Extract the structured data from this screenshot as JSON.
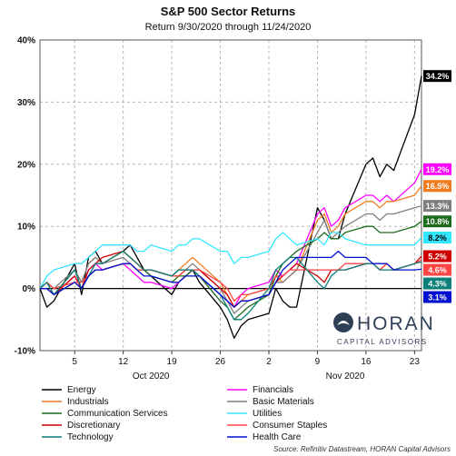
{
  "chart_data": {
    "type": "line",
    "title": "S&P 500 Sector Returns",
    "subtitle": "Return 9/30/2020 through 11/24/2020",
    "source": "Source: Refinitiv Datastream, HORAN Capital Advisors",
    "y_axis": {
      "min": -10,
      "max": 40,
      "ticks": [
        -10,
        0,
        10,
        20,
        30,
        40
      ],
      "tick_labels": [
        "-10%",
        "0%",
        "10%",
        "20%",
        "30%",
        "40%"
      ]
    },
    "x_axis": {
      "start": "2020-09-30",
      "end": "2020-11-24",
      "day_ticks": [
        {
          "date": "2020-10-05",
          "label": "5"
        },
        {
          "date": "2020-10-12",
          "label": "12"
        },
        {
          "date": "2020-10-19",
          "label": "19"
        },
        {
          "date": "2020-10-26",
          "label": "26"
        },
        {
          "date": "2020-11-02",
          "label": "2"
        },
        {
          "date": "2020-11-09",
          "label": "9"
        },
        {
          "date": "2020-11-16",
          "label": "16"
        },
        {
          "date": "2020-11-23",
          "label": "23"
        }
      ],
      "month_labels": [
        {
          "label": "Oct 2020",
          "date": "2020-10-16"
        },
        {
          "label": "Nov 2020",
          "date": "2020-11-13"
        }
      ]
    },
    "grid": true,
    "legend_position": "bottom",
    "dates": [
      "2020-09-30",
      "2020-10-01",
      "2020-10-02",
      "2020-10-05",
      "2020-10-06",
      "2020-10-07",
      "2020-10-08",
      "2020-10-09",
      "2020-10-12",
      "2020-10-13",
      "2020-10-14",
      "2020-10-15",
      "2020-10-16",
      "2020-10-19",
      "2020-10-20",
      "2020-10-21",
      "2020-10-22",
      "2020-10-23",
      "2020-10-26",
      "2020-10-27",
      "2020-10-28",
      "2020-10-29",
      "2020-10-30",
      "2020-11-02",
      "2020-11-03",
      "2020-11-04",
      "2020-11-05",
      "2020-11-06",
      "2020-11-09",
      "2020-11-10",
      "2020-11-11",
      "2020-11-12",
      "2020-11-13",
      "2020-11-16",
      "2020-11-17",
      "2020-11-18",
      "2020-11-19",
      "2020-11-20",
      "2020-11-23",
      "2020-11-24"
    ],
    "series": [
      {
        "name": "Energy",
        "color": "#000000",
        "end_label": "34.2%",
        "values": [
          0,
          -3,
          -2,
          4,
          -1,
          5,
          6,
          4,
          6,
          7,
          5,
          3,
          2,
          -1,
          1,
          2,
          3,
          1,
          -3,
          -5,
          -8,
          -6,
          -5,
          -4,
          0,
          -2,
          -3,
          -3,
          13,
          11,
          8,
          8,
          12,
          20,
          21,
          18,
          20,
          19,
          28,
          34.2
        ]
      },
      {
        "name": "Financials",
        "color": "#ff00ff",
        "end_label": "19.2%",
        "values": [
          0,
          1,
          -1,
          2,
          0,
          3,
          4,
          3,
          4,
          3,
          2,
          1,
          1,
          0,
          1,
          2,
          3,
          2,
          -1,
          -2,
          -3,
          -1,
          0,
          1,
          3,
          2,
          3,
          4,
          12,
          13,
          10,
          11,
          13,
          15,
          15,
          14,
          15,
          14,
          17,
          19.2
        ]
      },
      {
        "name": "Industrials",
        "color": "#f07b20",
        "end_label": "16.5%",
        "values": [
          0,
          1,
          -1,
          3,
          1,
          4,
          5,
          4,
          6,
          5,
          4,
          3,
          3,
          2,
          3,
          4,
          5,
          4,
          1,
          -1,
          -3,
          -2,
          -1,
          0,
          2,
          1,
          2,
          3,
          11,
          12,
          9,
          10,
          12,
          14,
          14,
          13,
          14,
          14,
          15,
          16.5
        ]
      },
      {
        "name": "Basic Materials",
        "color": "#7f7f7f",
        "end_label": "13.3%",
        "values": [
          0,
          1,
          0,
          3,
          1,
          4,
          5,
          4,
          5,
          4,
          3,
          3,
          3,
          2,
          3,
          3,
          4,
          3,
          0,
          -2,
          -4,
          -3,
          -2,
          -1,
          1,
          1,
          2,
          3,
          9,
          11,
          8,
          9,
          10,
          12,
          12,
          11,
          12,
          12,
          13,
          13.3
        ]
      },
      {
        "name": "Communication Services",
        "color": "#1d6b1d",
        "end_label": "10.8%",
        "values": [
          0,
          1,
          -1,
          1,
          0,
          2,
          3,
          3,
          4,
          4,
          3,
          3,
          2,
          1,
          2,
          2,
          3,
          2,
          -2,
          -3,
          -5,
          -4,
          -3,
          -1,
          2,
          4,
          5,
          6,
          8,
          9,
          8,
          8,
          9,
          10,
          10,
          9,
          9,
          9,
          10,
          10.8
        ]
      },
      {
        "name": "Utilities",
        "color": "#33e6ff",
        "end_label": "8.2%",
        "values": [
          0,
          2,
          3,
          4,
          4,
          5,
          6,
          7,
          7,
          7,
          6,
          6,
          7,
          6,
          7,
          7,
          8,
          8,
          6,
          6,
          4,
          5,
          5,
          6,
          8,
          9,
          8,
          7,
          8,
          7,
          9,
          9,
          8,
          7,
          7,
          7,
          7,
          7,
          7,
          8.2
        ]
      },
      {
        "name": "Discretionary",
        "color": "#d00000",
        "end_label": "5.2%",
        "values": [
          0,
          0,
          -1,
          2,
          0,
          3,
          4,
          5,
          6,
          5,
          4,
          3,
          3,
          2,
          2,
          3,
          3,
          3,
          0,
          -1,
          -3,
          -2,
          -2,
          -1,
          1,
          2,
          3,
          4,
          2,
          1,
          3,
          3,
          3,
          4,
          4,
          3,
          4,
          3,
          4,
          5.2
        ]
      },
      {
        "name": "Consumer Staples",
        "color": "#ff4444",
        "end_label": "4.6%",
        "values": [
          0,
          1,
          0,
          1,
          1,
          2,
          3,
          3,
          4,
          4,
          3,
          3,
          3,
          2,
          2,
          3,
          3,
          3,
          1,
          0,
          -2,
          -1,
          -1,
          0,
          2,
          2,
          3,
          3,
          3,
          3,
          3,
          3,
          4,
          4,
          4,
          3,
          4,
          3,
          4,
          4.6
        ]
      },
      {
        "name": "Technology",
        "color": "#0b7f7a",
        "end_label": "4.3%",
        "values": [
          0,
          1,
          -1,
          3,
          0,
          2,
          4,
          4,
          6,
          5,
          4,
          3,
          3,
          2,
          3,
          3,
          3,
          2,
          -1,
          -3,
          -5,
          -5,
          -4,
          0,
          3,
          4,
          5,
          5,
          1,
          0,
          2,
          3,
          3,
          4,
          4,
          3,
          3,
          3,
          4,
          4.3
        ]
      },
      {
        "name": "Health Care",
        "color": "#0010d0",
        "end_label": "3.1%",
        "values": [
          0,
          0,
          -1,
          1,
          0,
          2,
          3,
          3,
          4,
          4,
          3,
          2,
          2,
          1,
          1,
          2,
          2,
          2,
          -1,
          -2,
          -3,
          -2,
          -2,
          -1,
          1,
          3,
          4,
          5,
          5,
          5,
          5,
          6,
          5,
          5,
          4,
          4,
          4,
          3,
          3,
          3.1
        ]
      }
    ]
  },
  "logo": {
    "name": "HORAN",
    "sub": "CAPITAL ADVISORS"
  }
}
